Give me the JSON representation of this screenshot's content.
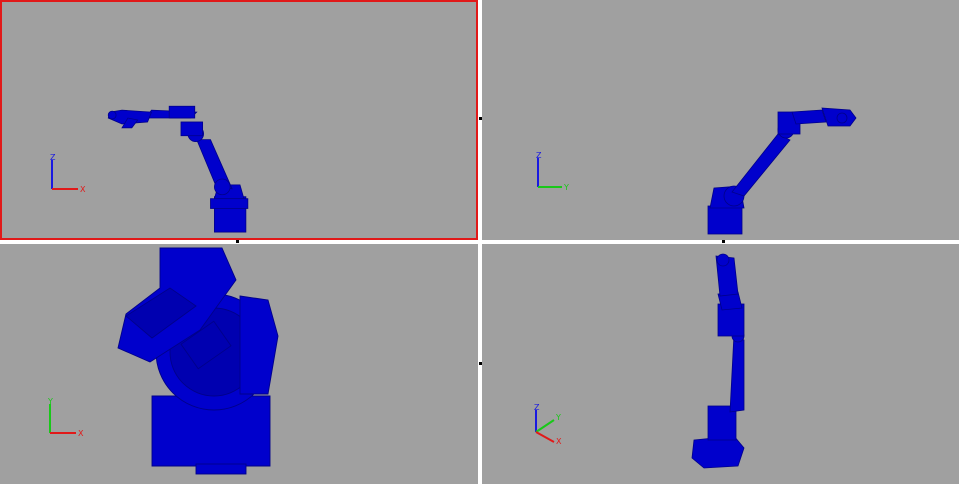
{
  "colors": {
    "background": "#a0a0a0",
    "robot": "#0000cc",
    "robot_dark": "#00008a",
    "active_border": "#e11919",
    "axis_x": "#e11919",
    "axis_y": "#19c819",
    "axis_z": "#1919e1"
  },
  "viewports": {
    "front": {
      "active": true,
      "axes": {
        "vertical": "Z",
        "horizontal": "X"
      }
    },
    "side": {
      "active": false,
      "axes": {
        "vertical": "Z",
        "horizontal": "Y"
      }
    },
    "top": {
      "active": false,
      "axes": {
        "vertical": "Y",
        "horizontal": "X"
      }
    },
    "iso": {
      "active": false,
      "axes": {
        "z": "Z",
        "y": "Y",
        "x": "X"
      }
    }
  }
}
